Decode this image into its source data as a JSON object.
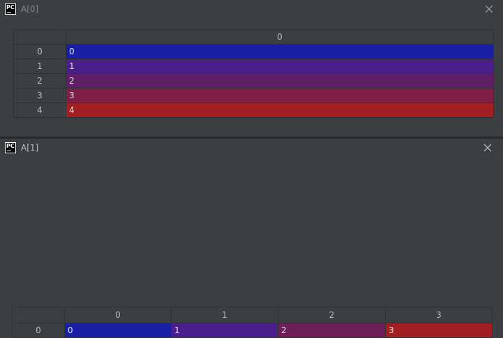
{
  "windows": [
    {
      "title": "A[0]",
      "columns": [
        "0"
      ],
      "rows": [
        {
          "index": "0",
          "cells": [
            {
              "value": "0",
              "color": "#1b1fa6"
            }
          ]
        },
        {
          "index": "1",
          "cells": [
            {
              "value": "1",
              "color": "#4a1f8b"
            }
          ]
        },
        {
          "index": "2",
          "cells": [
            {
              "value": "2",
              "color": "#5e1f66"
            }
          ]
        },
        {
          "index": "3",
          "cells": [
            {
              "value": "3",
              "color": "#7f1f47"
            }
          ]
        },
        {
          "index": "4",
          "cells": [
            {
              "value": "4",
              "color": "#a11f22"
            }
          ]
        }
      ]
    },
    {
      "title": "A[1]",
      "columns": [
        "0",
        "1",
        "2",
        "3"
      ],
      "rows": [
        {
          "index": "0",
          "cells": [
            {
              "value": "0",
              "color": "#1b1fa6"
            },
            {
              "value": "1",
              "color": "#4a1f8b"
            },
            {
              "value": "2",
              "color": "#6e1f57"
            },
            {
              "value": "3",
              "color": "#a11f22"
            }
          ]
        }
      ]
    }
  ],
  "icons": {
    "app": "pycharm-icon",
    "close": "close-icon"
  },
  "app_icon_text": "PC"
}
